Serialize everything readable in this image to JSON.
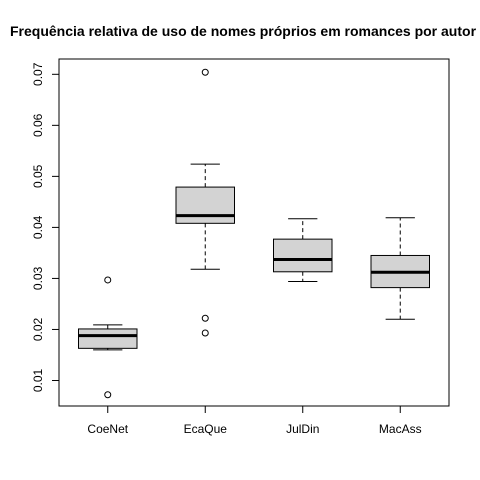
{
  "chart_data": {
    "type": "boxplot",
    "title": "Frequência relativa de uso de nomes próprios em romances por autor",
    "xlabel": "",
    "ylabel": "",
    "categories": [
      "CoeNet",
      "EcaQue",
      "JulDin",
      "MacAss"
    ],
    "ylim": [
      0.005,
      0.073
    ],
    "yticks": [
      "0.01",
      "0.02",
      "0.03",
      "0.04",
      "0.05",
      "0.06",
      "0.07"
    ],
    "boxes": [
      {
        "name": "CoeNet",
        "lower_whisker": 0.016,
        "q1": 0.0163,
        "median": 0.0188,
        "q3": 0.0201,
        "upper_whisker": 0.0209,
        "outliers": [
          0.0297,
          0.0072
        ]
      },
      {
        "name": "EcaQue",
        "lower_whisker": 0.0318,
        "q1": 0.0408,
        "median": 0.0423,
        "q3": 0.0479,
        "upper_whisker": 0.0524,
        "outliers": [
          0.0704,
          0.0222,
          0.0193
        ]
      },
      {
        "name": "JulDin",
        "lower_whisker": 0.0294,
        "q1": 0.0313,
        "median": 0.0337,
        "q3": 0.0377,
        "upper_whisker": 0.0417,
        "outliers": []
      },
      {
        "name": "MacAss",
        "lower_whisker": 0.022,
        "q1": 0.0282,
        "median": 0.0312,
        "q3": 0.0345,
        "upper_whisker": 0.0419,
        "outliers": []
      }
    ],
    "box_fill": "#d3d3d3",
    "grid": false,
    "legend": "none"
  }
}
